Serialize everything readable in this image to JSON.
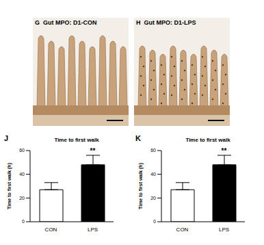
{
  "images": [
    {
      "panel": "G",
      "label": "Gut MPO: D1-CON"
    },
    {
      "panel": "H",
      "label": "Gut MPO: D1-LPS"
    }
  ],
  "chart_data": [
    {
      "panel": "J",
      "type": "bar",
      "title": "Time to first walk",
      "y_label": "Time to first walk (h)",
      "categories": [
        "CON",
        "LPS"
      ],
      "values": [
        27,
        48
      ],
      "errors": [
        6,
        8
      ],
      "colors": [
        "#ffffff",
        "#000000"
      ],
      "ylim": [
        0,
        60
      ],
      "yticks": [
        0,
        20,
        40,
        60
      ],
      "annotations": [
        {
          "category": "LPS",
          "text": "**"
        }
      ]
    },
    {
      "panel": "K",
      "type": "bar",
      "title": "Time to first walk",
      "y_label": "Time to first walk (h)",
      "categories": [
        "CON",
        "LPS"
      ],
      "values": [
        27,
        48
      ],
      "errors": [
        6,
        8
      ],
      "colors": [
        "#ffffff",
        "#000000"
      ],
      "ylim": [
        0,
        60
      ],
      "yticks": [
        0,
        20,
        40,
        60
      ],
      "annotations": [
        {
          "category": "LPS",
          "text": "**"
        }
      ]
    }
  ]
}
